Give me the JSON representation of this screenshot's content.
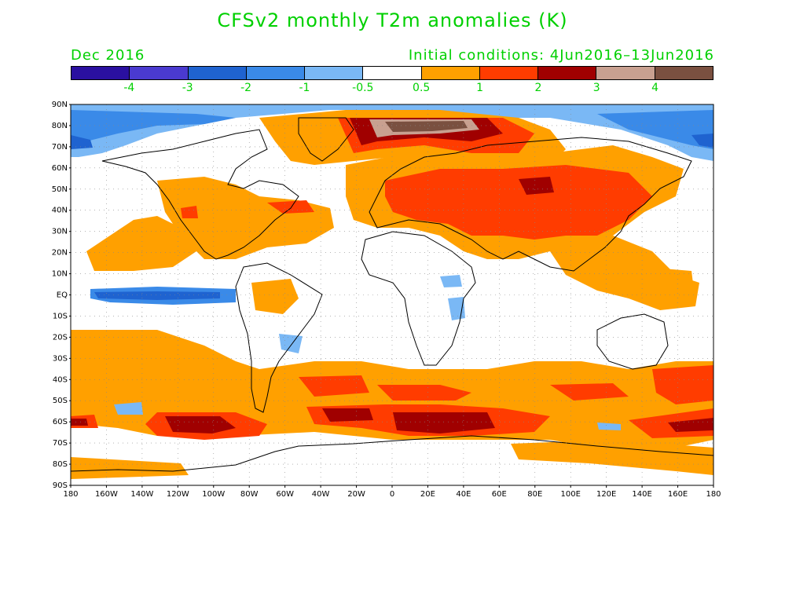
{
  "header": {
    "title": "CFSv2 monthly T2m anomalies (K)",
    "month": "Dec 2016",
    "initial_conditions": "Initial conditions: 4Jun2016–13Jun2016"
  },
  "colorbar": {
    "colors": [
      "#2a10a0",
      "#4a3ad0",
      "#1f63d0",
      "#3a8ae8",
      "#7ab8f5",
      "#ffffff",
      "#ffa000",
      "#ff3c00",
      "#a00000",
      "#c8a090",
      "#7a5040"
    ],
    "labels": [
      "-4",
      "-3",
      "-2",
      "-1",
      "-0.5",
      "0.5",
      "1",
      "2",
      "3",
      "4"
    ]
  },
  "map": {
    "lat_labels": [
      "90N",
      "80N",
      "70N",
      "60N",
      "50N",
      "40N",
      "30N",
      "20N",
      "10N",
      "EQ",
      "10S",
      "20S",
      "30S",
      "40S",
      "50S",
      "60S",
      "70S",
      "80S",
      "90S"
    ],
    "lon_labels": [
      "180",
      "160W",
      "140W",
      "120W",
      "100W",
      "80W",
      "60W",
      "40W",
      "20W",
      "0",
      "20E",
      "40E",
      "60E",
      "80E",
      "100E",
      "120E",
      "140E",
      "160E",
      "180"
    ]
  }
}
